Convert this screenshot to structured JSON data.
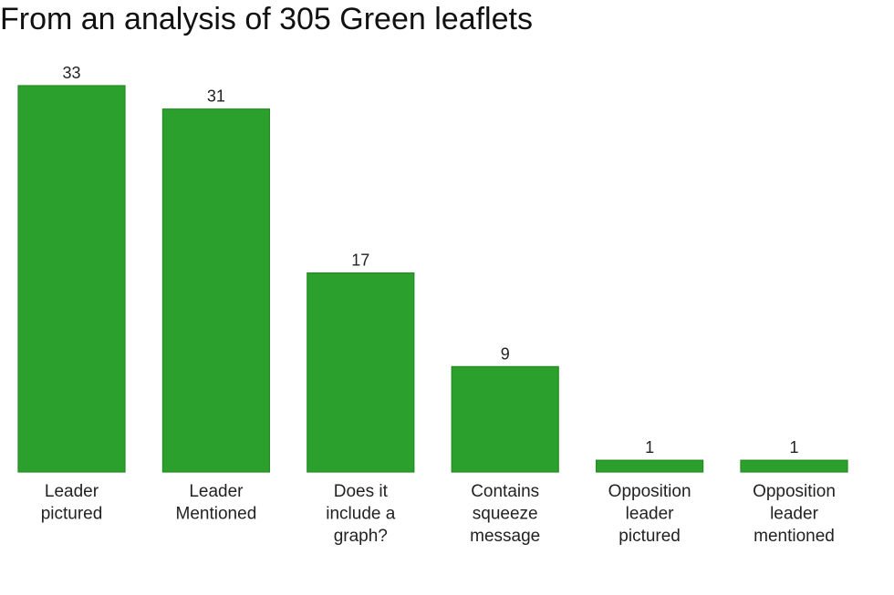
{
  "chart_data": {
    "type": "bar",
    "title": "From an analysis of 305 Green leaflets",
    "categories": [
      [
        "Leader",
        "pictured"
      ],
      [
        "Leader",
        "Mentioned"
      ],
      [
        "Does it",
        "include a",
        "graph?"
      ],
      [
        "Contains",
        "squeeze",
        "message"
      ],
      [
        "Opposition",
        "leader",
        "pictured"
      ],
      [
        "Opposition",
        "leader",
        "mentioned"
      ]
    ],
    "values": [
      33,
      31,
      17,
      9,
      1,
      1
    ],
    "data_labels": [
      "33",
      "31",
      "17",
      "9",
      "1",
      "1"
    ],
    "ylim": [
      0,
      33
    ],
    "bar_color": "#2ca02c",
    "bar_edge_color": "#228b22",
    "grid": false,
    "legend": "none"
  }
}
